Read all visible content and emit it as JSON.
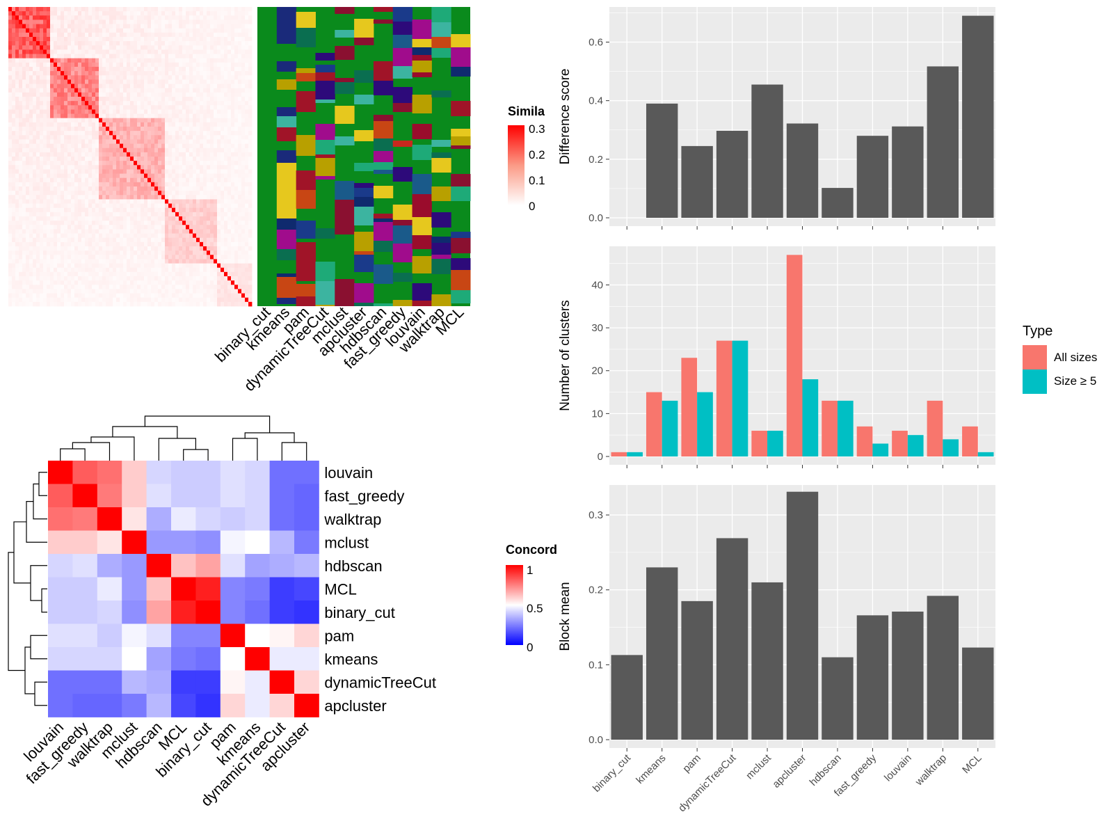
{
  "colors": {
    "panel_bg": "#ebebeb",
    "grid": "#ffffff",
    "bar": "#595959",
    "all_sizes": "#f8766d",
    "size_ge5": "#00bfc4",
    "heat_high": "#ff0000",
    "heat_mid": "#ffffff",
    "heat_low": "#0000ff",
    "class_background": "#0a8a1c"
  },
  "similarity_heatmap": {
    "legend_title": "Simila",
    "legend_ticks": [
      "0.3",
      "0.2",
      "0.1",
      "0"
    ],
    "column_labels": [
      "binary_cut",
      "kmeans",
      "pam",
      "dynamicTreeCut",
      "mclust",
      "apcluster",
      "hdbscan",
      "fast_greedy",
      "louvain",
      "walktrap",
      "MCL"
    ]
  },
  "concordance_heatmap": {
    "legend_title": "Concord",
    "legend_ticks": [
      "1",
      "0.5",
      "0"
    ],
    "row_labels": [
      "louvain",
      "fast_greedy",
      "walktrap",
      "mclust",
      "hdbscan",
      "MCL",
      "binary_cut",
      "pam",
      "kmeans",
      "dynamicTreeCut",
      "apcluster"
    ],
    "column_labels": [
      "louvain",
      "fast_greedy",
      "walktrap",
      "mclust",
      "hdbscan",
      "MCL",
      "binary_cut",
      "pam",
      "kmeans",
      "dynamicTreeCut",
      "apcluster"
    ]
  },
  "chart_data": [
    {
      "type": "bar",
      "categories": [
        "binary_cut",
        "kmeans",
        "pam",
        "dynamicTreeCut",
        "mclust",
        "apcluster",
        "hdbscan",
        "fast_greedy",
        "louvain",
        "walktrap",
        "MCL"
      ],
      "values": [
        0.0,
        0.39,
        0.245,
        0.297,
        0.455,
        0.322,
        0.102,
        0.28,
        0.312,
        0.517,
        0.69
      ],
      "xlabel": "",
      "ylabel": "Difference score",
      "ylim": [
        0,
        0.72
      ],
      "yticks": [
        "0.0",
        "0.2",
        "0.4",
        "0.6"
      ],
      "grid": true
    },
    {
      "type": "bar",
      "categories": [
        "binary_cut",
        "kmeans",
        "pam",
        "dynamicTreeCut",
        "mclust",
        "apcluster",
        "hdbscan",
        "fast_greedy",
        "louvain",
        "walktrap",
        "MCL"
      ],
      "series": [
        {
          "name": "All sizes",
          "values": [
            1,
            15,
            23,
            27,
            6,
            47,
            13,
            7,
            6,
            13,
            7
          ]
        },
        {
          "name": "Size ≥ 5",
          "values": [
            1,
            13,
            15,
            27,
            6,
            18,
            13,
            3,
            5,
            4,
            1
          ]
        }
      ],
      "xlabel": "",
      "ylabel": "Number of clusters",
      "ylim": [
        0,
        49
      ],
      "yticks": [
        "0",
        "10",
        "20",
        "30",
        "40"
      ],
      "grid": true,
      "legend": {
        "title": "Type",
        "position": "right",
        "entries": [
          "All sizes",
          "Size ≥ 5"
        ]
      }
    },
    {
      "type": "bar",
      "categories": [
        "binary_cut",
        "kmeans",
        "pam",
        "dynamicTreeCut",
        "mclust",
        "apcluster",
        "hdbscan",
        "fast_greedy",
        "louvain",
        "walktrap",
        "MCL"
      ],
      "values": [
        0.113,
        0.23,
        0.185,
        0.269,
        0.21,
        0.331,
        0.11,
        0.166,
        0.171,
        0.192,
        0.123
      ],
      "xlabel": "",
      "ylabel": "Block mean",
      "ylim": [
        0,
        0.34
      ],
      "yticks": [
        "0.0",
        "0.1",
        "0.2",
        "0.3"
      ],
      "grid": true
    },
    {
      "type": "heatmap",
      "name": "concordance",
      "rows": [
        "louvain",
        "fast_greedy",
        "walktrap",
        "mclust",
        "hdbscan",
        "MCL",
        "binary_cut",
        "pam",
        "kmeans",
        "dynamicTreeCut",
        "apcluster"
      ],
      "columns": [
        "louvain",
        "fast_greedy",
        "walktrap",
        "mclust",
        "hdbscan",
        "MCL",
        "binary_cut",
        "pam",
        "kmeans",
        "dynamicTreeCut",
        "apcluster"
      ],
      "values": [
        [
          1.0,
          0.82,
          0.78,
          0.6,
          0.42,
          0.4,
          0.4,
          0.44,
          0.42,
          0.22,
          0.22
        ],
        [
          0.82,
          1.0,
          0.76,
          0.6,
          0.44,
          0.4,
          0.4,
          0.44,
          0.42,
          0.22,
          0.2
        ],
        [
          0.78,
          0.76,
          1.0,
          0.55,
          0.34,
          0.46,
          0.42,
          0.4,
          0.42,
          0.22,
          0.2
        ],
        [
          0.6,
          0.6,
          0.55,
          1.0,
          0.3,
          0.3,
          0.28,
          0.48,
          0.5,
          0.36,
          0.24
        ],
        [
          0.42,
          0.44,
          0.34,
          0.3,
          1.0,
          0.62,
          0.68,
          0.44,
          0.32,
          0.34,
          0.36
        ],
        [
          0.4,
          0.4,
          0.46,
          0.3,
          0.62,
          1.0,
          0.94,
          0.26,
          0.24,
          0.12,
          0.14
        ],
        [
          0.4,
          0.4,
          0.42,
          0.28,
          0.68,
          0.94,
          1.0,
          0.26,
          0.22,
          0.12,
          0.1
        ],
        [
          0.44,
          0.44,
          0.4,
          0.48,
          0.44,
          0.26,
          0.26,
          1.0,
          0.5,
          0.52,
          0.58
        ],
        [
          0.42,
          0.42,
          0.42,
          0.5,
          0.32,
          0.24,
          0.22,
          0.5,
          1.0,
          0.46,
          0.46
        ],
        [
          0.22,
          0.22,
          0.22,
          0.36,
          0.34,
          0.12,
          0.12,
          0.52,
          0.46,
          1.0,
          0.58
        ],
        [
          0.22,
          0.2,
          0.2,
          0.24,
          0.36,
          0.14,
          0.1,
          0.58,
          0.46,
          0.58,
          1.0
        ]
      ]
    }
  ]
}
